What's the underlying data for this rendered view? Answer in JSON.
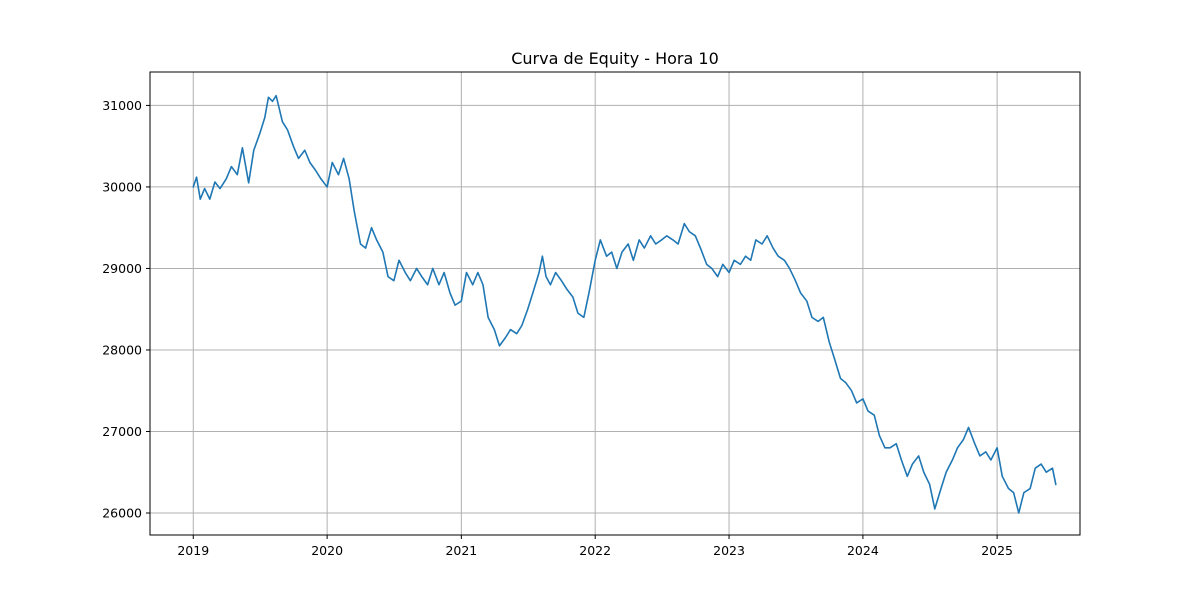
{
  "chart_data": {
    "type": "line",
    "title": "Curva de Equity - Hora 10",
    "xlabel": "",
    "ylabel": "",
    "x_axis": {
      "type": "date",
      "range": [
        "2018-09-05",
        "2025-08-15"
      ]
    },
    "xlim": [
      "2018-09-05",
      "2025-08-15"
    ],
    "ylim": [
      25730,
      31410
    ],
    "x_ticks": [
      "2019",
      "2020",
      "2021",
      "2022",
      "2023",
      "2024",
      "2025"
    ],
    "y_ticks": [
      "26000",
      "27000",
      "28000",
      "29000",
      "30000",
      "31000"
    ],
    "grid": true,
    "legend": "none",
    "series": [
      {
        "color": "#1f77b4",
        "points": [
          [
            "2019-01-01",
            30000
          ],
          [
            "2019-01-10",
            30120
          ],
          [
            "2019-01-20",
            29850
          ],
          [
            "2019-02-01",
            29980
          ],
          [
            "2019-02-15",
            29850
          ],
          [
            "2019-03-01",
            30060
          ],
          [
            "2019-03-15",
            29980
          ],
          [
            "2019-04-01",
            30100
          ],
          [
            "2019-04-15",
            30250
          ],
          [
            "2019-05-01",
            30150
          ],
          [
            "2019-05-15",
            30480
          ],
          [
            "2019-06-01",
            30050
          ],
          [
            "2019-06-15",
            30450
          ],
          [
            "2019-07-01",
            30650
          ],
          [
            "2019-07-15",
            30850
          ],
          [
            "2019-07-25",
            31100
          ],
          [
            "2019-08-05",
            31050
          ],
          [
            "2019-08-15",
            31120
          ],
          [
            "2019-09-01",
            30800
          ],
          [
            "2019-09-15",
            30700
          ],
          [
            "2019-10-01",
            30500
          ],
          [
            "2019-10-15",
            30350
          ],
          [
            "2019-11-01",
            30450
          ],
          [
            "2019-11-15",
            30300
          ],
          [
            "2019-12-01",
            30200
          ],
          [
            "2019-12-15",
            30100
          ],
          [
            "2020-01-01",
            30000
          ],
          [
            "2020-01-15",
            30300
          ],
          [
            "2020-02-01",
            30150
          ],
          [
            "2020-02-15",
            30350
          ],
          [
            "2020-03-01",
            30100
          ],
          [
            "2020-03-15",
            29700
          ],
          [
            "2020-04-01",
            29300
          ],
          [
            "2020-04-15",
            29250
          ],
          [
            "2020-05-01",
            29500
          ],
          [
            "2020-05-15",
            29350
          ],
          [
            "2020-06-01",
            29200
          ],
          [
            "2020-06-15",
            28900
          ],
          [
            "2020-07-01",
            28850
          ],
          [
            "2020-07-15",
            29100
          ],
          [
            "2020-08-01",
            28950
          ],
          [
            "2020-08-15",
            28850
          ],
          [
            "2020-09-01",
            29000
          ],
          [
            "2020-09-15",
            28900
          ],
          [
            "2020-10-01",
            28800
          ],
          [
            "2020-10-15",
            29000
          ],
          [
            "2020-11-01",
            28800
          ],
          [
            "2020-11-15",
            28950
          ],
          [
            "2020-12-01",
            28700
          ],
          [
            "2020-12-15",
            28550
          ],
          [
            "2021-01-01",
            28600
          ],
          [
            "2021-01-15",
            28950
          ],
          [
            "2021-02-01",
            28800
          ],
          [
            "2021-02-15",
            28950
          ],
          [
            "2021-03-01",
            28800
          ],
          [
            "2021-03-15",
            28400
          ],
          [
            "2021-04-01",
            28250
          ],
          [
            "2021-04-15",
            28050
          ],
          [
            "2021-05-01",
            28150
          ],
          [
            "2021-05-15",
            28250
          ],
          [
            "2021-06-01",
            28200
          ],
          [
            "2021-06-15",
            28300
          ],
          [
            "2021-07-01",
            28500
          ],
          [
            "2021-07-15",
            28700
          ],
          [
            "2021-08-01",
            28950
          ],
          [
            "2021-08-10",
            29150
          ],
          [
            "2021-08-20",
            28900
          ],
          [
            "2021-09-01",
            28800
          ],
          [
            "2021-09-15",
            28950
          ],
          [
            "2021-10-01",
            28850
          ],
          [
            "2021-10-15",
            28750
          ],
          [
            "2021-11-01",
            28650
          ],
          [
            "2021-11-15",
            28450
          ],
          [
            "2021-12-01",
            28400
          ],
          [
            "2021-12-15",
            28700
          ],
          [
            "2022-01-01",
            29100
          ],
          [
            "2022-01-15",
            29350
          ],
          [
            "2022-02-01",
            29150
          ],
          [
            "2022-02-15",
            29200
          ],
          [
            "2022-03-01",
            29000
          ],
          [
            "2022-03-15",
            29200
          ],
          [
            "2022-04-01",
            29300
          ],
          [
            "2022-04-15",
            29100
          ],
          [
            "2022-05-01",
            29350
          ],
          [
            "2022-05-15",
            29250
          ],
          [
            "2022-06-01",
            29400
          ],
          [
            "2022-06-15",
            29300
          ],
          [
            "2022-07-01",
            29350
          ],
          [
            "2022-07-15",
            29400
          ],
          [
            "2022-08-01",
            29350
          ],
          [
            "2022-08-15",
            29300
          ],
          [
            "2022-09-01",
            29550
          ],
          [
            "2022-09-15",
            29450
          ],
          [
            "2022-10-01",
            29400
          ],
          [
            "2022-10-15",
            29250
          ],
          [
            "2022-11-01",
            29050
          ],
          [
            "2022-11-15",
            29000
          ],
          [
            "2022-12-01",
            28900
          ],
          [
            "2022-12-15",
            29050
          ],
          [
            "2023-01-01",
            28950
          ],
          [
            "2023-01-15",
            29100
          ],
          [
            "2023-02-01",
            29050
          ],
          [
            "2023-02-15",
            29150
          ],
          [
            "2023-03-01",
            29100
          ],
          [
            "2023-03-15",
            29350
          ],
          [
            "2023-04-01",
            29300
          ],
          [
            "2023-04-15",
            29400
          ],
          [
            "2023-05-01",
            29250
          ],
          [
            "2023-05-15",
            29150
          ],
          [
            "2023-06-01",
            29100
          ],
          [
            "2023-06-15",
            29000
          ],
          [
            "2023-07-01",
            28850
          ],
          [
            "2023-07-15",
            28700
          ],
          [
            "2023-08-01",
            28600
          ],
          [
            "2023-08-15",
            28400
          ],
          [
            "2023-09-01",
            28350
          ],
          [
            "2023-09-15",
            28400
          ],
          [
            "2023-10-01",
            28100
          ],
          [
            "2023-10-15",
            27900
          ],
          [
            "2023-11-01",
            27650
          ],
          [
            "2023-11-15",
            27600
          ],
          [
            "2023-12-01",
            27500
          ],
          [
            "2023-12-15",
            27350
          ],
          [
            "2024-01-01",
            27400
          ],
          [
            "2024-01-15",
            27250
          ],
          [
            "2024-02-01",
            27200
          ],
          [
            "2024-02-15",
            26950
          ],
          [
            "2024-03-01",
            26800
          ],
          [
            "2024-03-15",
            26800
          ],
          [
            "2024-04-01",
            26850
          ],
          [
            "2024-04-15",
            26650
          ],
          [
            "2024-05-01",
            26450
          ],
          [
            "2024-05-15",
            26600
          ],
          [
            "2024-06-01",
            26700
          ],
          [
            "2024-06-15",
            26500
          ],
          [
            "2024-07-01",
            26350
          ],
          [
            "2024-07-15",
            26050
          ],
          [
            "2024-08-01",
            26300
          ],
          [
            "2024-08-15",
            26500
          ],
          [
            "2024-09-01",
            26650
          ],
          [
            "2024-09-15",
            26800
          ],
          [
            "2024-10-01",
            26900
          ],
          [
            "2024-10-15",
            27050
          ],
          [
            "2024-11-01",
            26850
          ],
          [
            "2024-11-15",
            26700
          ],
          [
            "2024-12-01",
            26750
          ],
          [
            "2024-12-15",
            26650
          ],
          [
            "2025-01-01",
            26800
          ],
          [
            "2025-01-15",
            26450
          ],
          [
            "2025-02-01",
            26300
          ],
          [
            "2025-02-15",
            26250
          ],
          [
            "2025-03-01",
            26000
          ],
          [
            "2025-03-15",
            26250
          ],
          [
            "2025-04-01",
            26300
          ],
          [
            "2025-04-15",
            26550
          ],
          [
            "2025-05-01",
            26600
          ],
          [
            "2025-05-15",
            26500
          ],
          [
            "2025-06-01",
            26550
          ],
          [
            "2025-06-10",
            26350
          ]
        ]
      }
    ]
  }
}
